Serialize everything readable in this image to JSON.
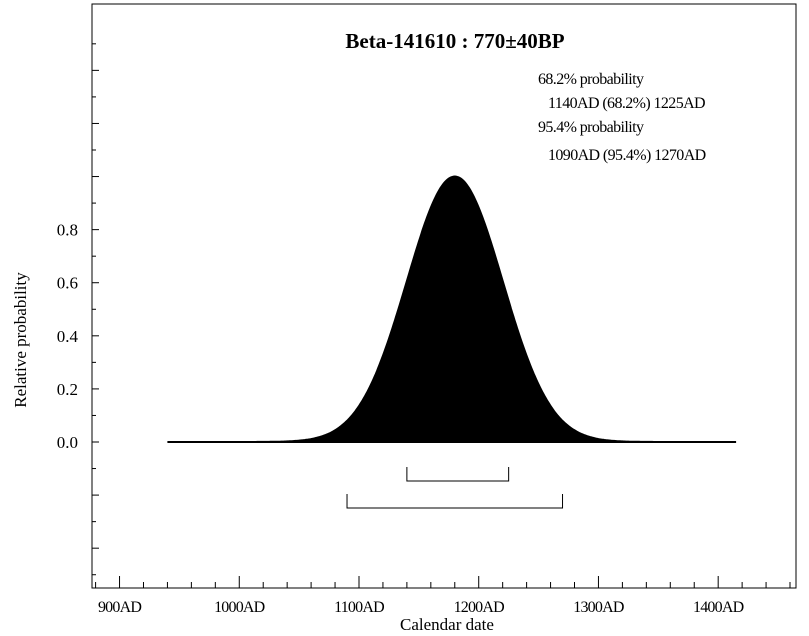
{
  "chart_data": {
    "type": "area",
    "title": "Beta-141610 : 770±40BP",
    "xlabel": "Calendar date",
    "ylabel": "Relative probability",
    "xlim": [
      877,
      1465
    ],
    "ylim": [
      -0.55,
      1.65
    ],
    "x_major_ticks": [
      900,
      1000,
      1100,
      1200,
      1300,
      1400
    ],
    "x_tick_labels": [
      "900AD",
      "1000AD",
      "1100AD",
      "1200AD",
      "1300AD",
      "1400AD"
    ],
    "y_ticks": [
      0.0,
      0.2,
      0.4,
      0.6,
      0.8
    ],
    "y_tick_labels": [
      "0.0",
      "0.2",
      "0.4",
      "0.6",
      "0.8"
    ],
    "grid": false,
    "series": [
      {
        "x_range": [
          940,
          1415
        ],
        "peak_x": 1180,
        "peak_y": 1.0,
        "sigma": 40
      }
    ],
    "ranges": [
      {
        "confidence": "68.2%",
        "from": 1140,
        "to": 1225
      },
      {
        "confidence": "95.4%",
        "from": 1090,
        "to": 1270
      }
    ],
    "annotations": [
      "68.2% probability",
      "1140AD (68.2%) 1225AD",
      "95.4% probability",
      "1090AD (95.4%) 1270AD"
    ]
  }
}
